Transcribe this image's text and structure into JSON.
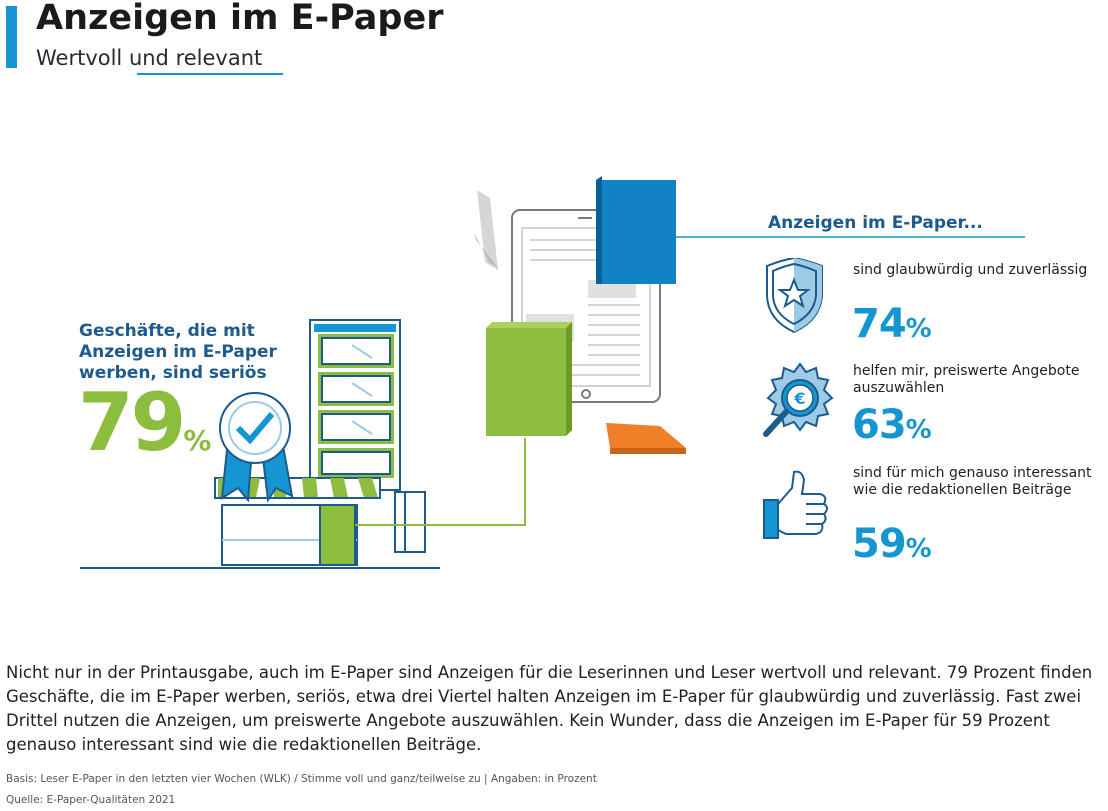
{
  "header": {
    "title": "Anzeigen im E-Paper",
    "subtitle": "Wertvoll und relevant"
  },
  "left": {
    "label": "Geschäfte, die mit Anzeigen im E-Paper werben, sind seriös",
    "value": "79",
    "unit": "%"
  },
  "right": {
    "heading": "Anzeigen im E-Paper...",
    "stats": [
      {
        "text": "sind glaubwürdig und zuverlässig",
        "value": "74",
        "unit": "%",
        "icon": "shield-star-icon"
      },
      {
        "text": "helfen mir, preiswerte Angebote auszuwählen",
        "value": "63",
        "unit": "%",
        "icon": "euro-magnifier-icon"
      },
      {
        "text": "sind für mich genauso interessant wie die redaktionellen Beiträge",
        "value": "59",
        "unit": "%",
        "icon": "thumbs-up-icon"
      }
    ]
  },
  "body_text": "Nicht nur in der Printausgabe, auch im E-Paper sind Anzeigen für die Leserinnen und Leser wertvoll und relevant. 79 Prozent finden Geschäfte, die im E-Paper werben, seriös, etwa drei Viertel halten Anzeigen im E-Paper für glaubwürdig und zuverlässig. Fast zwei Drittel nutzen die Anzeigen, um preiswerte Angebote auszuwählen. Kein Wunder, dass die Anzeigen im E-Paper für 59 Prozent genauso interessant sind wie die redaktionellen Beiträge.",
  "footer": {
    "basis": "Basis: Leser E-Paper in den letzten vier Wochen (WLK) / Stimme voll und ganz/teilweise zu | Angaben: in Prozent",
    "source": "Quelle: E-Paper-Qualitäten 2021"
  },
  "colors": {
    "accent_blue": "#1596d3",
    "dark_blue": "#1e5a8c",
    "green": "#8cbd3f",
    "orange": "#f07f2a"
  }
}
